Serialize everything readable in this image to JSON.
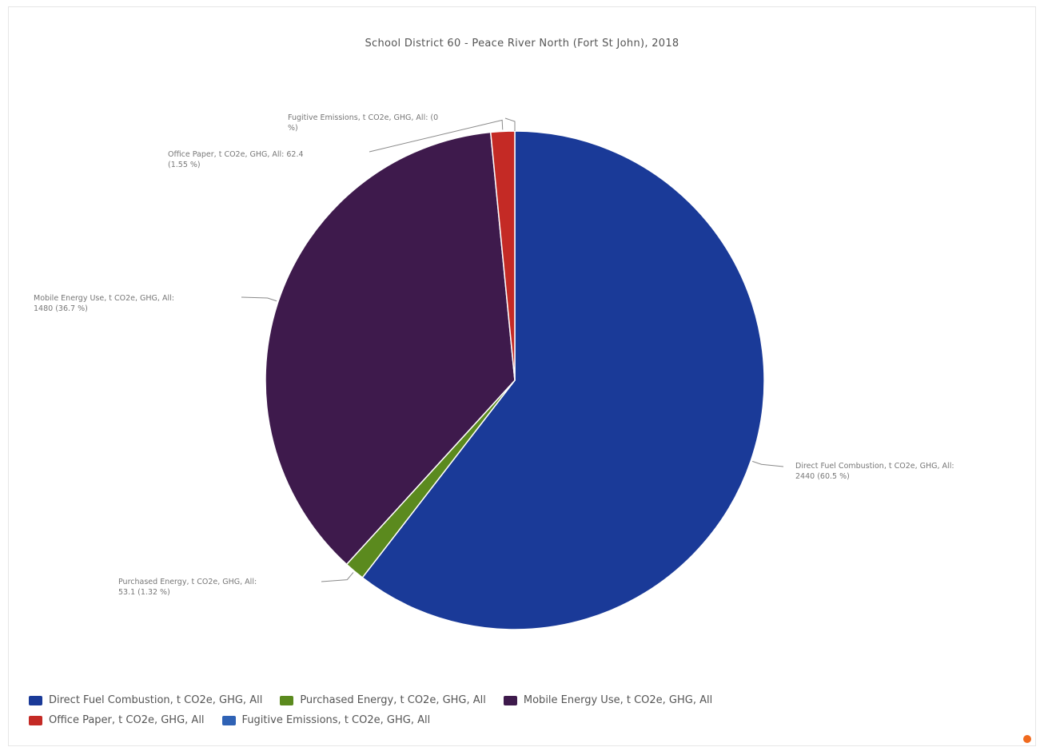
{
  "chart_data": {
    "type": "pie",
    "title": "School District 60 - Peace River North (Fort St John), 2018",
    "series": [
      {
        "name": "Direct Fuel Combustion, t CO2e, GHG, All",
        "value": 2440,
        "percent_label": "60.5 %",
        "color": "#1a3a98"
      },
      {
        "name": "Purchased Energy, t CO2e, GHG, All",
        "value": 53.1,
        "percent_label": "1.32 %",
        "color": "#5b8a1e"
      },
      {
        "name": "Mobile Energy Use, t CO2e, GHG, All",
        "value": 1480,
        "percent_label": "36.7 %",
        "color": "#3e1a4c"
      },
      {
        "name": "Office Paper, t CO2e, GHG, All",
        "value": 62.4,
        "percent_label": "1.55 %",
        "color": "#c42a25"
      },
      {
        "name": "Fugitive Emissions, t CO2e, GHG, All",
        "value": 0,
        "percent_label": "0 %",
        "color": "#2f62b5"
      }
    ],
    "data_labels": [
      {
        "line1": "Fugitive Emissions, t CO2e, GHG, All: (0",
        "line2": "%)"
      },
      {
        "line1": "Office Paper, t CO2e, GHG, All: 62.4",
        "line2": "(1.55 %)"
      },
      {
        "line1": "Mobile Energy Use, t CO2e, GHG, All:",
        "line2": "1480 (36.7 %)"
      },
      {
        "line1": "Direct Fuel Combustion, t CO2e, GHG, All:",
        "line2": "2440 (60.5 %)"
      },
      {
        "line1": "Purchased Energy, t CO2e, GHG, All:",
        "line2": "53.1 (1.32 %)"
      }
    ],
    "legend_placement": "bottom"
  }
}
